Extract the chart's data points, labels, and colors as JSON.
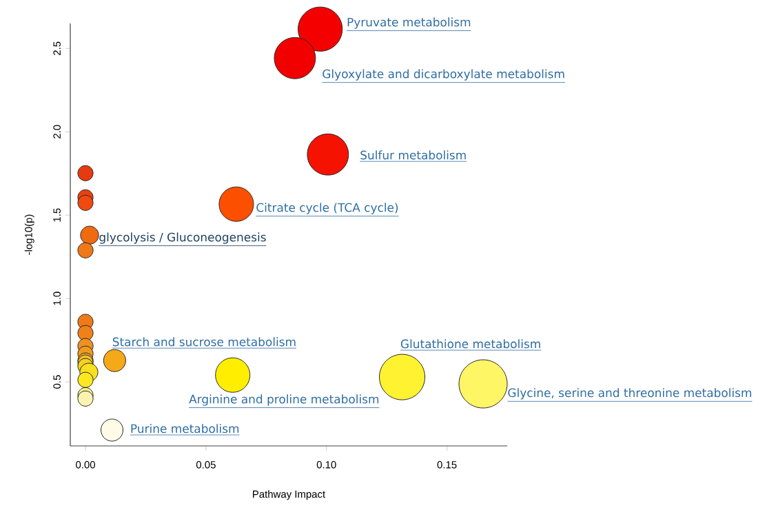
{
  "chart_data": {
    "type": "bubble",
    "xlabel": "Pathway Impact",
    "ylabel": "-log10(p)",
    "xlim": [
      -0.0063,
      0.175
    ],
    "ylim": [
      0.116,
      2.65
    ],
    "xticks": [
      {
        "value": 0,
        "label": "0.00"
      },
      {
        "value": 0.05,
        "label": "0.05"
      },
      {
        "value": 0.1,
        "label": "0.10"
      },
      {
        "value": 0.15,
        "label": "0.15"
      }
    ],
    "yticks": [
      {
        "value": 0.5,
        "label": "0.5"
      },
      {
        "value": 1,
        "label": "1.0"
      },
      {
        "value": 1.5,
        "label": "1.5"
      },
      {
        "value": 2,
        "label": "2.0"
      },
      {
        "value": 2.5,
        "label": "2.5"
      }
    ],
    "series": [
      {
        "x": [
          0.0974,
          0.0869,
          0.1006,
          0,
          0,
          0,
          0.0626,
          0.0017,
          0,
          0,
          0,
          0,
          0,
          0,
          0.0121,
          0,
          0,
          0.0014,
          0.0611,
          0.1314,
          0,
          0.165,
          0,
          0,
          0.011
        ],
        "values": [
          2.616,
          2.442,
          1.864,
          1.752,
          1.607,
          1.574,
          1.566,
          1.38,
          1.289,
          0.86,
          0.793,
          0.715,
          0.669,
          0.628,
          0.628,
          0.616,
          0.595,
          0.558,
          0.541,
          0.529,
          0.512,
          0.488,
          0.42,
          0.4,
          0.211
        ],
        "sizes": [
          0.84,
          0.73,
          0.73,
          0.1,
          0.1,
          0.1,
          0.51,
          0.14,
          0.1,
          0.1,
          0.1,
          0.1,
          0.1,
          0.1,
          0.21,
          0.1,
          0.1,
          0.14,
          0.51,
          0.89,
          0.1,
          1,
          0.1,
          0.1,
          0.21
        ],
        "colors": [
          "#f40000",
          "#f20000",
          "#f51200",
          "#e83a10",
          "#ea4010",
          "#f04a10",
          "#fc5000",
          "#f06a10",
          "#f07818",
          "#f07a18",
          "#f08018",
          "#f09020",
          "#f09a20",
          "#f5b020",
          "#f5a818",
          "#f0c030",
          "#f5d020",
          "#f8e020",
          "#ffee00",
          "#fff230",
          "#fce820",
          "#fff666",
          "#f8f090",
          "#fbf4b0",
          "#fffbe6"
        ]
      }
    ],
    "annotations": [
      {
        "text": "Pyruvate metabolism",
        "x": 0.0974,
        "y": 2.616
      },
      {
        "text": "Glyoxylate and dicarboxylate metabolism",
        "x": 0.0869,
        "y": 2.442
      },
      {
        "text": "Sulfur metabolism",
        "x": 0.1006,
        "y": 1.864
      },
      {
        "text": "Citrate cycle (TCA cycle)",
        "x": 0.0626,
        "y": 1.566
      },
      {
        "text": "glycolysis / Gluconeogenesis",
        "x": 0.0017,
        "y": 1.38
      },
      {
        "text": "Starch and sucrose metabolism",
        "x": 0.0121,
        "y": 0.628
      },
      {
        "text": "Arginine and proline metabolism",
        "x": 0.0611,
        "y": 0.541
      },
      {
        "text": "Glutathione metabolism",
        "x": 0.1314,
        "y": 0.529
      },
      {
        "text": "Glycine, serine and threonine metabolism",
        "x": 0.165,
        "y": 0.488
      },
      {
        "text": "Purine metabolism",
        "x": 0.011,
        "y": 0.211
      }
    ]
  }
}
